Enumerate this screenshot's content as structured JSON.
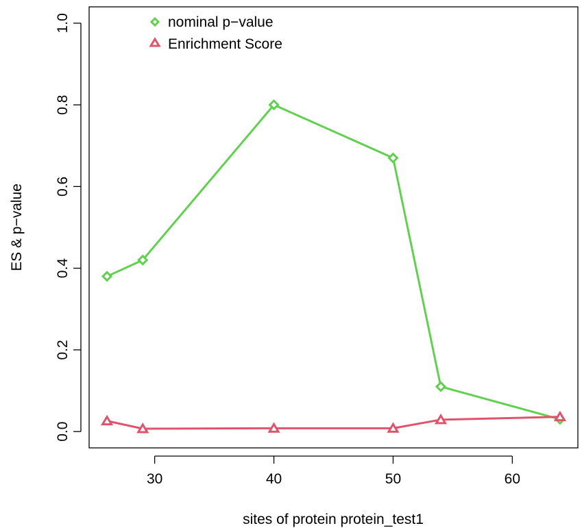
{
  "chart_data": {
    "type": "line",
    "title": "",
    "xlabel": "sites of protein protein_test1",
    "ylabel": "ES & p−value",
    "xlim": [
      24.5,
      65.5
    ],
    "ylim": [
      -0.04,
      1.04
    ],
    "x_ticks": [
      30,
      40,
      50,
      60
    ],
    "x_tick_labels": [
      "30",
      "40",
      "50",
      "60"
    ],
    "y_ticks": [
      0.0,
      0.2,
      0.4,
      0.6,
      0.8,
      1.0
    ],
    "y_tick_labels": [
      "0.0",
      "0.2",
      "0.4",
      "0.6",
      "0.8",
      "1.0"
    ],
    "grid": false,
    "legend_position": "top-left",
    "x": [
      26,
      29,
      40,
      50,
      54,
      64
    ],
    "series": [
      {
        "name": "nominal p−value",
        "color": "#61D04F",
        "marker": "diamond",
        "values": [
          0.38,
          0.42,
          0.8,
          0.67,
          0.11,
          0.03
        ]
      },
      {
        "name": "Enrichment Score",
        "color": "#DF536B",
        "marker": "triangle",
        "values": [
          0.026,
          0.007,
          0.008,
          0.008,
          0.029,
          0.036
        ]
      }
    ]
  }
}
